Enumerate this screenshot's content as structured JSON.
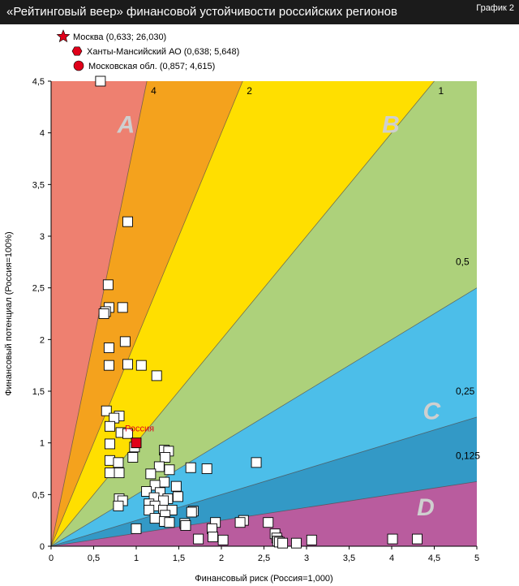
{
  "header": {
    "title": "«Рейтинговый веер» финансовой устойчивости российских регионов",
    "tag": "График 2"
  },
  "chart_data": {
    "type": "scatter",
    "xlabel": "Финансовый риск (Россия=1,000)",
    "ylabel": "Финансовый потенциал (Россия=100%)",
    "xlim": [
      0,
      5
    ],
    "ylim": [
      0,
      4.5
    ],
    "xticks": [
      "0",
      "0,5",
      "1",
      "1,5",
      "2",
      "2,5",
      "3",
      "3,5",
      "4",
      "4,5",
      "5"
    ],
    "yticks": [
      "0",
      "0,5",
      "1",
      "1,5",
      "2",
      "2,5",
      "3",
      "3,5",
      "4",
      "4,5"
    ],
    "colors": {
      "zone_salmon": "#ee8070",
      "zone_orange": "#f4a21d",
      "zone_yellow": "#ffdf00",
      "zone_green": "#add17b",
      "zone_lightblue": "#4cbee9",
      "zone_darkblue": "#3399c6",
      "zone_purple": "#b95c9e",
      "russia": "#e0001a",
      "marker_fill": "#ffffff"
    },
    "fan_lines": [
      {
        "label": "4",
        "slope": 4
      },
      {
        "label": "2",
        "slope": 2
      },
      {
        "label": "1",
        "slope": 1
      },
      {
        "label": "0,5",
        "slope": 0.5
      },
      {
        "label": "0,25",
        "slope": 0.25
      },
      {
        "label": "0,125",
        "slope": 0.125
      }
    ],
    "zone_labels": [
      {
        "text": "A",
        "x": 0.88,
        "y": 4.0
      },
      {
        "text": "B",
        "x": 3.99,
        "y": 4.0
      },
      {
        "text": "C",
        "x": 4.47,
        "y": 1.23
      },
      {
        "text": "D",
        "x": 4.4,
        "y": 0.3
      }
    ],
    "legend": [
      {
        "marker": "star",
        "text": "Москва (0,633; 26,030)"
      },
      {
        "marker": "hexagon",
        "text": "Ханты-Мансийский АО (0,638; 5,648)"
      },
      {
        "marker": "circle",
        "text": "Московская обл. (0,857; 4,615)"
      }
    ],
    "russia": {
      "label": "Россия",
      "x": 1.0,
      "y": 1.0
    },
    "regions": [
      [
        0.58,
        4.5
      ],
      [
        0.9,
        3.14
      ],
      [
        0.67,
        2.53
      ],
      [
        0.84,
        2.31
      ],
      [
        0.68,
        2.31
      ],
      [
        0.64,
        2.27
      ],
      [
        0.62,
        2.25
      ],
      [
        0.87,
        1.98
      ],
      [
        0.68,
        1.92
      ],
      [
        0.9,
        1.76
      ],
      [
        1.06,
        1.75
      ],
      [
        0.68,
        1.75
      ],
      [
        1.24,
        1.65
      ],
      [
        0.65,
        1.31
      ],
      [
        0.8,
        1.26
      ],
      [
        0.74,
        1.24
      ],
      [
        0.69,
        1.16
      ],
      [
        0.82,
        1.1
      ],
      [
        0.9,
        1.09
      ],
      [
        0.69,
        0.99
      ],
      [
        0.98,
        0.96
      ],
      [
        1.33,
        0.93
      ],
      [
        1.38,
        0.92
      ],
      [
        1.34,
        0.86
      ],
      [
        0.96,
        0.86
      ],
      [
        0.69,
        0.83
      ],
      [
        0.79,
        0.81
      ],
      [
        1.27,
        0.77
      ],
      [
        1.64,
        0.76
      ],
      [
        1.83,
        0.75
      ],
      [
        1.39,
        0.74
      ],
      [
        2.41,
        0.81
      ],
      [
        0.69,
        0.71
      ],
      [
        0.8,
        0.71
      ],
      [
        1.17,
        0.7
      ],
      [
        1.33,
        0.62
      ],
      [
        1.22,
        0.59
      ],
      [
        1.47,
        0.58
      ],
      [
        1.12,
        0.53
      ],
      [
        1.28,
        0.52
      ],
      [
        1.49,
        0.48
      ],
      [
        1.37,
        0.46
      ],
      [
        1.21,
        0.47
      ],
      [
        0.8,
        0.46
      ],
      [
        0.84,
        0.44
      ],
      [
        1.32,
        0.44
      ],
      [
        1.15,
        0.41
      ],
      [
        1.22,
        0.39
      ],
      [
        0.79,
        0.39
      ],
      [
        1.15,
        0.35
      ],
      [
        1.32,
        0.35
      ],
      [
        1.42,
        0.35
      ],
      [
        1.67,
        0.34
      ],
      [
        1.65,
        0.33
      ],
      [
        1.34,
        0.3
      ],
      [
        1.22,
        0.27
      ],
      [
        1.33,
        0.24
      ],
      [
        1.39,
        0.23
      ],
      [
        1.57,
        0.22
      ],
      [
        1.93,
        0.23
      ],
      [
        2.26,
        0.25
      ],
      [
        2.55,
        0.23
      ],
      [
        2.22,
        0.23
      ],
      [
        1.58,
        0.2
      ],
      [
        1.89,
        0.17
      ],
      [
        1.0,
        0.17
      ],
      [
        2.63,
        0.12
      ],
      [
        2.65,
        0.08
      ],
      [
        1.9,
        0.09
      ],
      [
        2.66,
        0.05
      ],
      [
        1.73,
        0.07
      ],
      [
        2.02,
        0.06
      ],
      [
        2.68,
        0.04
      ],
      [
        2.72,
        0.03
      ],
      [
        2.88,
        0.03
      ],
      [
        3.06,
        0.06
      ],
      [
        4.01,
        0.07
      ],
      [
        4.3,
        0.07
      ]
    ]
  }
}
